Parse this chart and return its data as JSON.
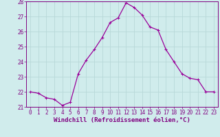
{
  "xlabel": "Windchill (Refroidissement éolien,°C)",
  "x": [
    0,
    1,
    2,
    3,
    4,
    5,
    6,
    7,
    8,
    9,
    10,
    11,
    12,
    13,
    14,
    15,
    16,
    17,
    18,
    19,
    20,
    21,
    22,
    23
  ],
  "y": [
    22.0,
    21.9,
    21.6,
    21.5,
    21.1,
    21.3,
    23.2,
    24.1,
    24.8,
    25.6,
    26.6,
    26.9,
    27.9,
    27.6,
    27.1,
    26.3,
    26.1,
    24.8,
    24.0,
    23.2,
    22.9,
    22.8,
    22.0,
    22.0
  ],
  "ylim": [
    21,
    28
  ],
  "xlim": [
    -0.5,
    23.5
  ],
  "yticks": [
    21,
    22,
    23,
    24,
    25,
    26,
    27,
    28
  ],
  "xticks": [
    0,
    1,
    2,
    3,
    4,
    5,
    6,
    7,
    8,
    9,
    10,
    11,
    12,
    13,
    14,
    15,
    16,
    17,
    18,
    19,
    20,
    21,
    22,
    23
  ],
  "line_color": "#990099",
  "marker": "+",
  "markersize": 3,
  "linewidth": 0.9,
  "bg_color": "#d0ecec",
  "grid_color": "#b8d8d8",
  "text_color": "#800080",
  "tick_fontsize": 5.5,
  "xlabel_fontsize": 6.5
}
